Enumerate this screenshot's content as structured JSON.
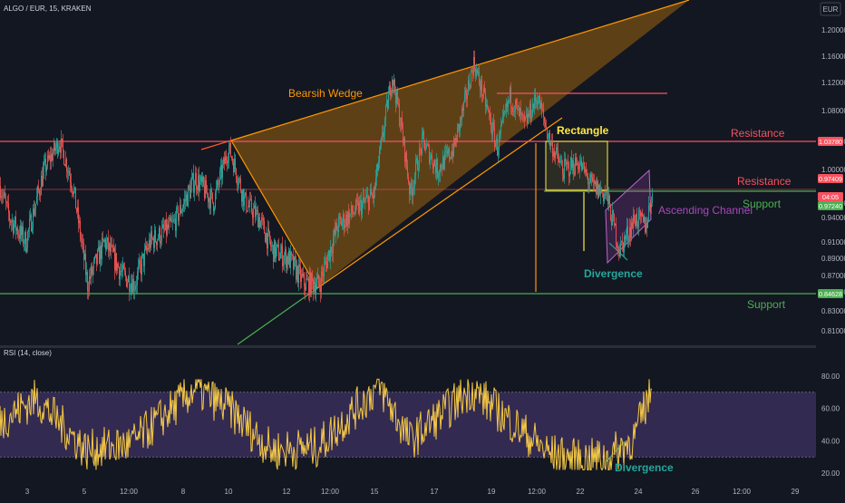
{
  "chart_data": {
    "type": "candlestick",
    "title": "ALGO / EUR, 15, KRAKEN",
    "currency_button": "EUR",
    "ylim": [
      0.8,
      1.22
    ],
    "y_ticks": [
      "1.20000",
      "1.16000",
      "1.12000",
      "1.08000",
      "1.04000",
      "1.00000",
      "0.96000",
      "0.94000",
      "0.91000",
      "0.89000",
      "0.87000",
      "0.85000",
      "0.83000",
      "0.81000"
    ],
    "x_ticks": [
      "3",
      "5",
      "12:00",
      "8",
      "10",
      "12",
      "12:00",
      "15",
      "17",
      "19",
      "12:00",
      "22",
      "24",
      "26",
      "12:00",
      "29"
    ],
    "price_tags": [
      {
        "label": "1.03780",
        "color": "#f7525f"
      },
      {
        "label": "0.97409",
        "color": "#f7525f"
      },
      {
        "label": "04:05",
        "color": "#f7525f"
      },
      {
        "label": "0.97240",
        "color": "#4caf50"
      },
      {
        "label": "0.84628",
        "color": "#4caf50"
      }
    ],
    "price_series": [
      {
        "i": 0,
        "price": 0.98
      },
      {
        "i": 10,
        "price": 0.94
      },
      {
        "i": 28,
        "price": 0.91
      },
      {
        "i": 48,
        "price": 1.0
      },
      {
        "i": 65,
        "price": 1.04
      },
      {
        "i": 80,
        "price": 0.98
      },
      {
        "i": 96,
        "price": 0.86
      },
      {
        "i": 115,
        "price": 0.91
      },
      {
        "i": 135,
        "price": 0.87
      },
      {
        "i": 148,
        "price": 0.86
      },
      {
        "i": 165,
        "price": 0.91
      },
      {
        "i": 190,
        "price": 0.93
      },
      {
        "i": 215,
        "price": 0.99
      },
      {
        "i": 235,
        "price": 0.96
      },
      {
        "i": 252,
        "price": 1.03
      },
      {
        "i": 270,
        "price": 0.96
      },
      {
        "i": 285,
        "price": 0.94
      },
      {
        "i": 300,
        "price": 0.9
      },
      {
        "i": 318,
        "price": 0.89
      },
      {
        "i": 335,
        "price": 0.86
      },
      {
        "i": 352,
        "price": 0.86
      },
      {
        "i": 372,
        "price": 0.93
      },
      {
        "i": 392,
        "price": 0.95
      },
      {
        "i": 412,
        "price": 0.97
      },
      {
        "i": 422,
        "price": 1.05
      },
      {
        "i": 432,
        "price": 1.13
      },
      {
        "i": 442,
        "price": 1.06
      },
      {
        "i": 452,
        "price": 0.97
      },
      {
        "i": 466,
        "price": 1.04
      },
      {
        "i": 482,
        "price": 1.0
      },
      {
        "i": 500,
        "price": 1.03
      },
      {
        "i": 512,
        "price": 1.09
      },
      {
        "i": 522,
        "price": 1.15
      },
      {
        "i": 535,
        "price": 1.09
      },
      {
        "i": 548,
        "price": 1.03
      },
      {
        "i": 562,
        "price": 1.1
      },
      {
        "i": 578,
        "price": 1.06
      },
      {
        "i": 592,
        "price": 1.1
      },
      {
        "i": 606,
        "price": 1.04
      },
      {
        "i": 620,
        "price": 1.0
      },
      {
        "i": 638,
        "price": 1.01
      },
      {
        "i": 652,
        "price": 0.98
      },
      {
        "i": 668,
        "price": 0.97
      },
      {
        "i": 683,
        "price": 0.9
      },
      {
        "i": 700,
        "price": 0.94
      },
      {
        "i": 712,
        "price": 0.93
      },
      {
        "i": 718,
        "price": 0.97
      }
    ],
    "series": [
      {
        "name": "RSI (14, close)",
        "ylim": [
          10,
          90
        ],
        "y_ticks": [
          "80.00",
          "60.00",
          "40.00",
          "20.00"
        ],
        "band": [
          30,
          70
        ],
        "values": [
          {
            "i": 0,
            "v": 52
          },
          {
            "i": 40,
            "v": 66
          },
          {
            "i": 95,
            "v": 34
          },
          {
            "i": 145,
            "v": 38
          },
          {
            "i": 215,
            "v": 72
          },
          {
            "i": 252,
            "v": 60
          },
          {
            "i": 300,
            "v": 34
          },
          {
            "i": 350,
            "v": 36
          },
          {
            "i": 418,
            "v": 74
          },
          {
            "i": 452,
            "v": 40
          },
          {
            "i": 520,
            "v": 72
          },
          {
            "i": 606,
            "v": 32
          },
          {
            "i": 640,
            "v": 28
          },
          {
            "i": 672,
            "v": 30
          },
          {
            "i": 700,
            "v": 42
          },
          {
            "i": 718,
            "v": 72
          }
        ]
      }
    ],
    "annotations": [
      {
        "text": "Bearsih Wedge",
        "color": "#ff9800"
      },
      {
        "text": "Rectangle",
        "color": "#ffeb3b"
      },
      {
        "text": "Resistance",
        "color": "#f7525f"
      },
      {
        "text": "Resistance",
        "color": "#f7525f"
      },
      {
        "text": "Support",
        "color": "#4caf50"
      },
      {
        "text": "Support",
        "color": "#4caf50"
      },
      {
        "text": "Ascending Channel",
        "color": "#ab47bc"
      },
      {
        "text": "Divergence",
        "color": "#26a69a"
      },
      {
        "text": "Divergence",
        "color": "#26a69a"
      }
    ],
    "colors": {
      "up": "#26a69a",
      "down": "#ef5350",
      "rsi_line": "#f5c945",
      "rsi_band": "#7e57c2"
    }
  }
}
